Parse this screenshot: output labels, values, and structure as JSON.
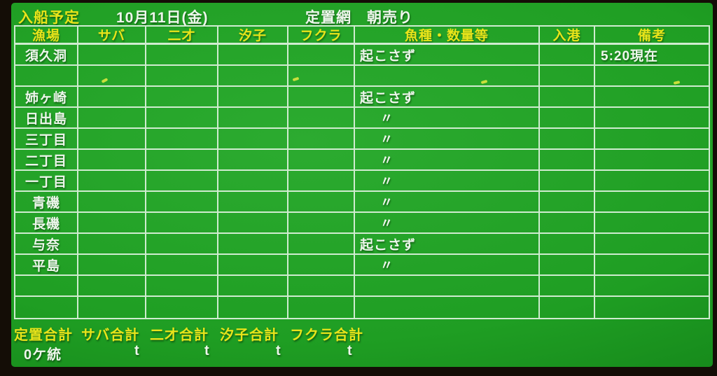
{
  "colors": {
    "board_green": "#1f9e23",
    "board_green_highlight": "#2cab30",
    "board_green_shadow": "#0d7413",
    "grid_line": "#deF2de",
    "text_yellow": "#e9e41a",
    "text_white": "#eef6ec",
    "frame_dark": "#140d06"
  },
  "title_bar": {
    "schedule_label": "入船予定",
    "date": "10月11日(金)",
    "sale_label": "定置網　朝売り"
  },
  "table": {
    "headers": [
      "漁場",
      "サバ",
      "二才",
      "汐子",
      "フクラ",
      "魚種・数量等",
      "入港",
      "備考"
    ],
    "rows": [
      [
        "須久洞",
        "",
        "",
        "",
        "",
        "起こさず",
        "",
        "5:20現在"
      ],
      [
        "",
        "",
        "",
        "",
        "",
        "",
        "",
        ""
      ],
      [
        "姉ヶ崎",
        "",
        "",
        "",
        "",
        "起こさず",
        "",
        ""
      ],
      [
        "日出島",
        "",
        "",
        "",
        "",
        "〃",
        "",
        ""
      ],
      [
        "三丁目",
        "",
        "",
        "",
        "",
        "〃",
        "",
        ""
      ],
      [
        "二丁目",
        "",
        "",
        "",
        "",
        "〃",
        "",
        ""
      ],
      [
        "一丁目",
        "",
        "",
        "",
        "",
        "〃",
        "",
        ""
      ],
      [
        "青磯",
        "",
        "",
        "",
        "",
        "〃",
        "",
        ""
      ],
      [
        "長磯",
        "",
        "",
        "",
        "",
        "〃",
        "",
        ""
      ],
      [
        "与奈",
        "",
        "",
        "",
        "",
        "起こさず",
        "",
        ""
      ],
      [
        "平島",
        "",
        "",
        "",
        "",
        "〃",
        "",
        ""
      ],
      [
        "",
        "",
        "",
        "",
        "",
        "",
        "",
        ""
      ],
      [
        "",
        "",
        "",
        "",
        "",
        "",
        "",
        ""
      ]
    ]
  },
  "footer": {
    "labels": [
      "定置合計",
      "サバ合計",
      "二才合計",
      "汐子合計",
      "フクラ合計"
    ],
    "values": [
      "0ケ統",
      "t",
      "t",
      "t",
      "t"
    ]
  }
}
